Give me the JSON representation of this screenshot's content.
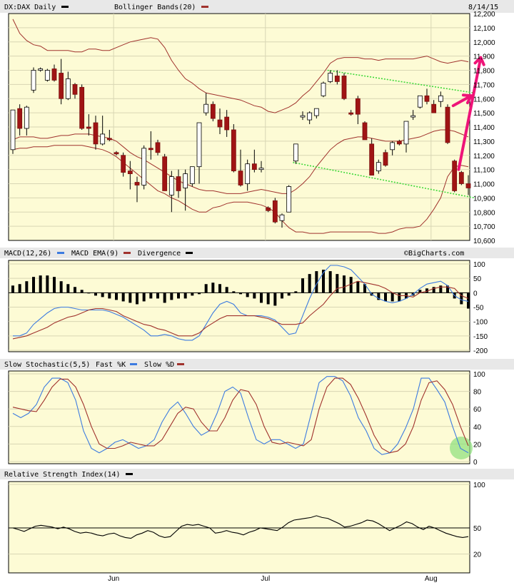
{
  "chart_data": [
    {
      "type": "candlestick",
      "title": "DX:DAX Daily",
      "indicator": "Bollinger Bands(20)",
      "date": "8/14/15",
      "ylim": [
        10600,
        12200
      ],
      "yticks": [
        "12,200",
        "12,100",
        "12,000",
        "11,900",
        "11,800",
        "11,700",
        "11,600",
        "11,500",
        "11,400",
        "11,300",
        "11,200",
        "11,100",
        "11,000",
        "10,900",
        "10,800",
        "10,700",
        "10,600"
      ],
      "x_labels": [
        {
          "label": "Jun",
          "index": 14.6
        },
        {
          "label": "Jul",
          "index": 36.6
        },
        {
          "label": "Aug",
          "index": 60.6
        }
      ],
      "candles": [
        {
          "o": 11240,
          "h": 11520,
          "l": 11210,
          "c": 11520
        },
        {
          "o": 11530,
          "h": 11560,
          "l": 11340,
          "c": 11390
        },
        {
          "o": 11390,
          "h": 11550,
          "l": 11340,
          "c": 11540
        },
        {
          "o": 11660,
          "h": 11820,
          "l": 11640,
          "c": 11800
        },
        {
          "o": 11800,
          "h": 11820,
          "l": 11790,
          "c": 11810
        },
        {
          "o": 11730,
          "h": 11810,
          "l": 11720,
          "c": 11800
        },
        {
          "o": 11810,
          "h": 11840,
          "l": 11720,
          "c": 11730
        },
        {
          "o": 11780,
          "h": 11880,
          "l": 11560,
          "c": 11600
        },
        {
          "o": 11600,
          "h": 11790,
          "l": 11590,
          "c": 11740
        },
        {
          "o": 11700,
          "h": 11710,
          "l": 11600,
          "c": 11630
        },
        {
          "o": 11680,
          "h": 11700,
          "l": 11380,
          "c": 11390
        },
        {
          "o": 11400,
          "h": 11490,
          "l": 11340,
          "c": 11390
        },
        {
          "o": 11430,
          "h": 11480,
          "l": 11240,
          "c": 11280
        },
        {
          "o": 11280,
          "h": 11480,
          "l": 11270,
          "c": 11350
        },
        {
          "o": 11320,
          "h": 11380,
          "l": 11300,
          "c": 11310
        },
        {
          "o": 11220,
          "h": 11230,
          "l": 11200,
          "c": 11210
        },
        {
          "o": 11200,
          "h": 11220,
          "l": 11050,
          "c": 11080
        },
        {
          "o": 11090,
          "h": 11160,
          "l": 10960,
          "c": 11070
        },
        {
          "o": 11010,
          "h": 11050,
          "l": 10870,
          "c": 10990
        },
        {
          "o": 10990,
          "h": 11270,
          "l": 10960,
          "c": 11250
        },
        {
          "o": 11250,
          "h": 11370,
          "l": 11170,
          "c": 11240
        },
        {
          "o": 11290,
          "h": 11310,
          "l": 11200,
          "c": 11220
        },
        {
          "o": 11190,
          "h": 11210,
          "l": 10950,
          "c": 10950
        },
        {
          "o": 10920,
          "h": 11090,
          "l": 10800,
          "c": 11050
        },
        {
          "o": 11050,
          "h": 11100,
          "l": 10900,
          "c": 10950
        },
        {
          "o": 10970,
          "h": 11100,
          "l": 10810,
          "c": 11070
        },
        {
          "o": 11000,
          "h": 11110,
          "l": 10980,
          "c": 11120
        },
        {
          "o": 11120,
          "h": 11430,
          "l": 11000,
          "c": 11430
        },
        {
          "o": 11500,
          "h": 11640,
          "l": 11480,
          "c": 11560
        },
        {
          "o": 11560,
          "h": 11580,
          "l": 11440,
          "c": 11460
        },
        {
          "o": 11450,
          "h": 11530,
          "l": 11350,
          "c": 11400
        },
        {
          "o": 11470,
          "h": 11520,
          "l": 11330,
          "c": 11380
        },
        {
          "o": 11380,
          "h": 11420,
          "l": 11080,
          "c": 11090
        },
        {
          "o": 11090,
          "h": 11240,
          "l": 10980,
          "c": 10990
        },
        {
          "o": 11000,
          "h": 11170,
          "l": 10950,
          "c": 11140
        },
        {
          "o": 11140,
          "h": 11240,
          "l": 11080,
          "c": 11100
        },
        {
          "o": 11100,
          "h": 11160,
          "l": 11080,
          "c": 11110
        },
        {
          "o": 10830,
          "h": 10840,
          "l": 10800,
          "c": 10810
        },
        {
          "o": 10880,
          "h": 10900,
          "l": 10720,
          "c": 10730
        },
        {
          "o": 10740,
          "h": 10790,
          "l": 10690,
          "c": 10780
        },
        {
          "o": 10800,
          "h": 10990,
          "l": 10800,
          "c": 10980
        },
        {
          "o": 11160,
          "h": 11280,
          "l": 11140,
          "c": 11280
        },
        {
          "o": 11470,
          "h": 11510,
          "l": 11450,
          "c": 11480
        },
        {
          "o": 11450,
          "h": 11510,
          "l": 11420,
          "c": 11500
        },
        {
          "o": 11480,
          "h": 11520,
          "l": 11460,
          "c": 11530
        },
        {
          "o": 11620,
          "h": 11720,
          "l": 11610,
          "c": 11710
        },
        {
          "o": 11720,
          "h": 11800,
          "l": 11710,
          "c": 11780
        },
        {
          "o": 11760,
          "h": 11800,
          "l": 11700,
          "c": 11720
        },
        {
          "o": 11760,
          "h": 11780,
          "l": 11590,
          "c": 11600
        },
        {
          "o": 11500,
          "h": 11520,
          "l": 11480,
          "c": 11490
        },
        {
          "o": 11600,
          "h": 11620,
          "l": 11420,
          "c": 11490
        },
        {
          "o": 11430,
          "h": 11440,
          "l": 11310,
          "c": 11310
        },
        {
          "o": 11280,
          "h": 11320,
          "l": 11060,
          "c": 11060
        },
        {
          "o": 11090,
          "h": 11170,
          "l": 11070,
          "c": 11150
        },
        {
          "o": 11220,
          "h": 11240,
          "l": 11120,
          "c": 11130
        },
        {
          "o": 11240,
          "h": 11300,
          "l": 11200,
          "c": 11290
        },
        {
          "o": 11300,
          "h": 11310,
          "l": 11270,
          "c": 11280
        },
        {
          "o": 11280,
          "h": 11440,
          "l": 11220,
          "c": 11440
        },
        {
          "o": 11470,
          "h": 11520,
          "l": 11450,
          "c": 11480
        },
        {
          "o": 11540,
          "h": 11620,
          "l": 11530,
          "c": 11620
        },
        {
          "o": 11620,
          "h": 11670,
          "l": 11560,
          "c": 11580
        },
        {
          "o": 11560,
          "h": 11590,
          "l": 11500,
          "c": 11500
        },
        {
          "o": 11580,
          "h": 11650,
          "l": 11540,
          "c": 11620
        },
        {
          "o": 11540,
          "h": 11560,
          "l": 11280,
          "c": 11290
        },
        {
          "o": 11160,
          "h": 11170,
          "l": 10940,
          "c": 10950
        },
        {
          "o": 11080,
          "h": 11090,
          "l": 10990,
          "c": 11000
        },
        {
          "o": 11000,
          "h": 11060,
          "l": 10920,
          "c": 10970
        }
      ],
      "bb_upper": [
        12160,
        12060,
        12010,
        11980,
        11970,
        11940,
        11940,
        11940,
        11940,
        11930,
        11930,
        11950,
        11950,
        11940,
        11940,
        11960,
        11980,
        12000,
        12010,
        12020,
        12030,
        12020,
        11960,
        11870,
        11800,
        11740,
        11710,
        11670,
        11640,
        11630,
        11620,
        11610,
        11600,
        11590,
        11570,
        11550,
        11540,
        11510,
        11500,
        11520,
        11540,
        11570,
        11620,
        11660,
        11720,
        11780,
        11850,
        11880,
        11890,
        11890,
        11890,
        11880,
        11880,
        11870,
        11880,
        11880,
        11880,
        11880,
        11880,
        11890,
        11900,
        11880,
        11860,
        11850,
        11860,
        11870,
        11860
      ],
      "bb_middle": [
        11310,
        11330,
        11330,
        11330,
        11320,
        11320,
        11330,
        11340,
        11340,
        11350,
        11350,
        11350,
        11340,
        11330,
        11320,
        11300,
        11260,
        11220,
        11190,
        11170,
        11140,
        11110,
        11080,
        11050,
        11020,
        11000,
        10980,
        10960,
        10950,
        10950,
        10940,
        10930,
        10930,
        10930,
        10940,
        10950,
        10960,
        10950,
        10940,
        10930,
        10930,
        10960,
        11000,
        11050,
        11120,
        11180,
        11240,
        11280,
        11310,
        11320,
        11330,
        11330,
        11320,
        11310,
        11300,
        11300,
        11300,
        11310,
        11320,
        11330,
        11350,
        11370,
        11380,
        11380,
        11370,
        11350,
        11330
      ],
      "bb_lower": [
        11240,
        11250,
        11250,
        11260,
        11260,
        11260,
        11270,
        11270,
        11270,
        11270,
        11270,
        11260,
        11250,
        11240,
        11220,
        11190,
        11150,
        11110,
        11070,
        11030,
        10990,
        10950,
        10930,
        10900,
        10880,
        10850,
        10820,
        10800,
        10800,
        10830,
        10840,
        10860,
        10870,
        10870,
        10870,
        10860,
        10850,
        10830,
        10800,
        10740,
        10690,
        10660,
        10660,
        10650,
        10650,
        10650,
        10660,
        10660,
        10660,
        10660,
        10660,
        10660,
        10660,
        10650,
        10650,
        10660,
        10680,
        10690,
        10690,
        10700,
        10750,
        10820,
        10900,
        11050,
        11120,
        11130,
        11120
      ],
      "trendlines": [
        {
          "i1": 45.6,
          "v1": 11800,
          "i2": 66.9,
          "v2": 11640
        },
        {
          "i1": 40.6,
          "v1": 11150,
          "i2": 66.9,
          "v2": 10900
        }
      ],
      "arrows": [
        {
          "i1": 64.6,
          "v1": 11100,
          "i2": 67.8,
          "v2": 11890
        },
        {
          "i1": 63.8,
          "v1": 11550,
          "i2": 66.4,
          "v2": 11620
        }
      ]
    },
    {
      "type": "line",
      "title": "MACD(12,26)",
      "legend": [
        "MACD(12,26)",
        "MACD EMA(9)",
        "Divergence"
      ],
      "watermark": "©BigCharts.com",
      "ylim": [
        -200,
        100
      ],
      "yticks": [
        "100",
        "50",
        "0",
        "-50",
        "-100",
        "-150",
        "-200"
      ],
      "series": [
        {
          "name": "MACD(12,26)",
          "color": "#3c7be0",
          "values": [
            -150,
            -150,
            -140,
            -110,
            -90,
            -70,
            -55,
            -50,
            -50,
            -55,
            -60,
            -60,
            -60,
            -60,
            -65,
            -75,
            -85,
            -100,
            -115,
            -130,
            -150,
            -150,
            -145,
            -150,
            -160,
            -165,
            -165,
            -150,
            -110,
            -70,
            -40,
            -30,
            -40,
            -70,
            -80,
            -80,
            -80,
            -85,
            -95,
            -120,
            -145,
            -140,
            -80,
            -20,
            30,
            70,
            95,
            95,
            90,
            80,
            55,
            30,
            -5,
            -20,
            -30,
            -35,
            -30,
            -20,
            -5,
            15,
            30,
            35,
            40,
            25,
            -10,
            -25,
            -30
          ]
        },
        {
          "name": "MACD EMA(9)",
          "color": "#a0322d",
          "values": [
            -160,
            -155,
            -150,
            -140,
            -130,
            -120,
            -105,
            -95,
            -85,
            -80,
            -70,
            -60,
            -55,
            -55,
            -60,
            -65,
            -80,
            -90,
            -100,
            -110,
            -115,
            -125,
            -130,
            -140,
            -150,
            -150,
            -150,
            -140,
            -120,
            -105,
            -90,
            -80,
            -80,
            -80,
            -80,
            -80,
            -85,
            -90,
            -100,
            -110,
            -110,
            -110,
            -105,
            -80,
            -60,
            -40,
            -10,
            15,
            20,
            30,
            40,
            35,
            30,
            25,
            15,
            0,
            -10,
            -10,
            -15,
            0,
            5,
            15,
            20,
            20,
            15,
            -10,
            -20
          ]
        },
        {
          "name": "Divergence",
          "color": "#000000",
          "values": [
            25,
            30,
            40,
            55,
            60,
            60,
            55,
            40,
            30,
            20,
            10,
            0,
            -10,
            -15,
            -20,
            -25,
            -30,
            -35,
            -40,
            -30,
            -20,
            -20,
            -35,
            -25,
            -20,
            -20,
            -10,
            -5,
            30,
            35,
            30,
            20,
            5,
            -5,
            -15,
            -20,
            -35,
            -40,
            -45,
            -20,
            -10,
            5,
            50,
            65,
            75,
            80,
            75,
            65,
            60,
            55,
            40,
            30,
            -10,
            -25,
            -30,
            -30,
            -30,
            -20,
            -10,
            10,
            15,
            20,
            25,
            25,
            -20,
            -40,
            -55
          ]
        }
      ]
    },
    {
      "type": "line",
      "title": "Slow Stochastic(5,5)",
      "legend": [
        "Slow Stochastic(5,5)",
        "Fast %K",
        "Slow %D"
      ],
      "ylim": [
        0,
        100
      ],
      "yticks": [
        "100",
        "80",
        "60",
        "40",
        "20",
        "0"
      ],
      "series": [
        {
          "name": "Fast %K",
          "color": "#3c7be0",
          "values": [
            55,
            50,
            55,
            65,
            85,
            95,
            95,
            90,
            70,
            35,
            15,
            10,
            15,
            22,
            25,
            20,
            15,
            18,
            25,
            45,
            60,
            68,
            55,
            40,
            30,
            35,
            55,
            80,
            85,
            78,
            50,
            25,
            20,
            25,
            25,
            20,
            15,
            20,
            55,
            90,
            97,
            97,
            92,
            75,
            50,
            35,
            15,
            8,
            10,
            20,
            38,
            60,
            95,
            95,
            82,
            68,
            40,
            15,
            10
          ]
        },
        {
          "name": "Slow %D",
          "color": "#a0322d",
          "values": [
            62,
            60,
            58,
            57,
            70,
            85,
            94,
            94,
            85,
            65,
            40,
            20,
            15,
            15,
            18,
            22,
            20,
            18,
            18,
            25,
            40,
            55,
            62,
            60,
            45,
            35,
            35,
            50,
            70,
            82,
            80,
            65,
            40,
            22,
            20,
            22,
            20,
            18,
            25,
            60,
            85,
            95,
            95,
            88,
            72,
            52,
            30,
            15,
            10,
            12,
            20,
            40,
            70,
            90,
            92,
            82,
            65,
            40,
            18
          ]
        }
      ]
    },
    {
      "type": "line",
      "title": "Relative Strength Index(14)",
      "ylim": [
        0,
        100
      ],
      "yticks": [
        "100",
        "50",
        "20"
      ],
      "series": [
        {
          "name": "Relative Strength Index(14)",
          "color": "#000000",
          "values": [
            50,
            48,
            46,
            49,
            52,
            53,
            52,
            51,
            49,
            51,
            49,
            46,
            44,
            45,
            44,
            42,
            41,
            43,
            44,
            41,
            39,
            38,
            42,
            44,
            47,
            45,
            41,
            39,
            40,
            46,
            52,
            54,
            53,
            54,
            52,
            50,
            44,
            45,
            47,
            45,
            44,
            42,
            45,
            47,
            50,
            49,
            48,
            47,
            51,
            56,
            59,
            60,
            61,
            62,
            64,
            62,
            61,
            58,
            55,
            51,
            52,
            54,
            56,
            59,
            58,
            55,
            51,
            47,
            50,
            53,
            57,
            55,
            51,
            48,
            52,
            50,
            47,
            44,
            42,
            40,
            39,
            40
          ]
        }
      ]
    }
  ]
}
